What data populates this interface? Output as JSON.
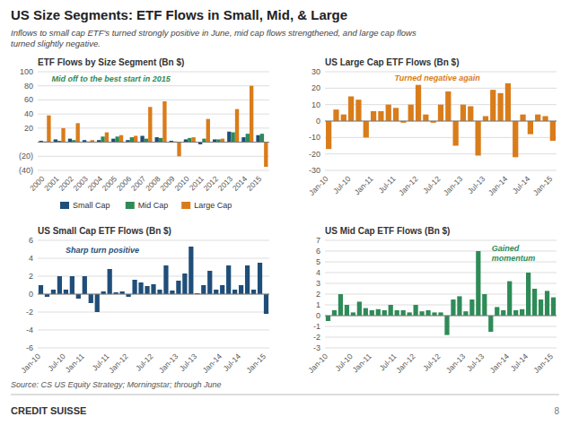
{
  "title": "US Size Segments: ETF Flows in Small, Mid, & Large",
  "subtitle": "Inflows to small cap ETF's turned strongly positive in June, mid cap flows strengthened, and large cap flows\nturned slightly negative.",
  "source": "Source: CS US Equity Strategy; Morningstar; through June",
  "logo": "CREDIT SUISSE",
  "page_number": "8",
  "chart_data": [
    {
      "type": "bar",
      "title": "ETF Flows by Size Segment (Bn $)",
      "categories": [
        "2000",
        "2001",
        "2002",
        "2003",
        "2004",
        "2005",
        "2006",
        "2007",
        "2008",
        "2009",
        "2010",
        "2011",
        "2012",
        "2013",
        "2014",
        "2015"
      ],
      "series": [
        {
          "name": "Small Cap",
          "color": "#1F4E79",
          "values": [
            2,
            4,
            5,
            3,
            3,
            5,
            3,
            9,
            7,
            2,
            4,
            -3,
            4,
            15,
            7,
            10
          ]
        },
        {
          "name": "Mid Cap",
          "color": "#2E8B57",
          "values": [
            1,
            2,
            3,
            1,
            8,
            8,
            7,
            5,
            6,
            1,
            6,
            5,
            4,
            14,
            12,
            12
          ]
        },
        {
          "name": "Large Cap",
          "color": "#D97C1A",
          "values": [
            38,
            20,
            27,
            3,
            14,
            10,
            9,
            50,
            58,
            -20,
            7,
            33,
            5,
            47,
            80,
            -35
          ]
        }
      ],
      "ylim": [
        -40,
        100
      ],
      "yticks": [
        {
          "value": -40,
          "label": "(40)"
        },
        {
          "value": -20,
          "label": "(20)"
        },
        20,
        40,
        60,
        80,
        100
      ],
      "annotations": [
        {
          "text": "Mid off to the best start in 2015",
          "color": "#2E8B57"
        }
      ],
      "grid": true,
      "legend": "bottom"
    },
    {
      "type": "bar",
      "title": "US Large Cap ETF Flows (Bn $)",
      "categories": [
        "Jan-10",
        null,
        null,
        "Jul-10",
        null,
        null,
        "Jan-11",
        null,
        null,
        "Jul-11",
        null,
        null,
        "Jan-12",
        null,
        null,
        "Jul-12",
        null,
        null,
        "Jan-13",
        null,
        null,
        "Jul-13",
        null,
        null,
        "Jan-14",
        null,
        null,
        "Jul-14",
        null,
        null,
        "Jan-15"
      ],
      "values": [
        -17,
        7,
        4,
        15,
        13,
        -10,
        6,
        6,
        10,
        8,
        -1,
        10,
        22,
        4,
        -1,
        10,
        18,
        -15,
        10,
        9,
        -21,
        3,
        19,
        17,
        23,
        -22,
        4,
        -8,
        4,
        3,
        -12
      ],
      "color": "#D97C1A",
      "ylim": [
        -30,
        30
      ],
      "yticks": [
        -30,
        -20,
        -10,
        0,
        10,
        20,
        30
      ],
      "annotations": [
        {
          "text": "Turned negative again",
          "color": "#D97C1A"
        }
      ],
      "grid": true
    },
    {
      "type": "bar",
      "title": "US Small Cap ETF Flows (Bn $)",
      "categories": [
        "Jan-10",
        null,
        null,
        null,
        "Jul-10",
        null,
        null,
        "Jan-11",
        null,
        null,
        null,
        "Jul-11",
        null,
        null,
        "Jan-12",
        null,
        null,
        null,
        "Jul-12",
        null,
        null,
        null,
        "Jan-13",
        null,
        null,
        "Jul-13",
        null,
        null,
        null,
        "Jan-14",
        null,
        null,
        "Jul-14",
        null,
        null,
        null,
        "Jan-15"
      ],
      "values": [
        1,
        -0.3,
        0.5,
        2,
        0.5,
        2,
        -0.5,
        2,
        -1,
        -2,
        0.3,
        2.8,
        0.2,
        0.3,
        -0.3,
        1.6,
        1.3,
        0.9,
        1.1,
        0.5,
        3.2,
        0.4,
        1.5,
        2.3,
        5.3,
        0.1,
        1,
        2.6,
        0.5,
        1,
        3.2,
        0.5,
        1,
        3.2,
        0.5,
        3.5,
        -2.2
      ],
      "color": "#1F4E79",
      "ylim": [
        -6,
        6
      ],
      "yticks": [
        -6,
        -4,
        -2,
        0,
        2,
        4,
        6
      ],
      "annotations": [
        {
          "text": "Sharp turn positive",
          "color": "#1F4E79"
        }
      ],
      "grid": true
    },
    {
      "type": "bar",
      "title": "US Mid Cap ETF Flows (Bn $)",
      "categories": [
        "Jan-10",
        null,
        null,
        null,
        "Jul-10",
        null,
        null,
        "Jan-11",
        null,
        null,
        null,
        "Jul-11",
        null,
        null,
        "Jan-12",
        null,
        null,
        null,
        "Jul-12",
        null,
        null,
        null,
        "Jan-13",
        null,
        null,
        "Jul-13",
        null,
        null,
        null,
        "Jan-14",
        null,
        null,
        "Jul-14",
        null,
        null,
        null,
        "Jan-15"
      ],
      "values": [
        -0.5,
        0.5,
        2,
        1,
        0.3,
        1.3,
        0.7,
        0.5,
        0.6,
        0.5,
        1,
        0.5,
        0.5,
        0.3,
        1,
        0.4,
        0.5,
        0.3,
        0.3,
        -1.8,
        1.5,
        1.8,
        0.4,
        1.5,
        6,
        2,
        -1.5,
        0.8,
        0.5,
        3.2,
        0.5,
        0.6,
        4,
        2.5,
        1.5,
        2.3,
        1.7
      ],
      "color": "#2E8B57",
      "ylim": [
        -3,
        7
      ],
      "yticks": [
        -3,
        -2,
        -1,
        0,
        1,
        2,
        3,
        4,
        5,
        6,
        7
      ],
      "annotations": [
        {
          "text": "Gained\nmomentum",
          "color": "#2E8B57"
        }
      ],
      "grid": true
    }
  ]
}
